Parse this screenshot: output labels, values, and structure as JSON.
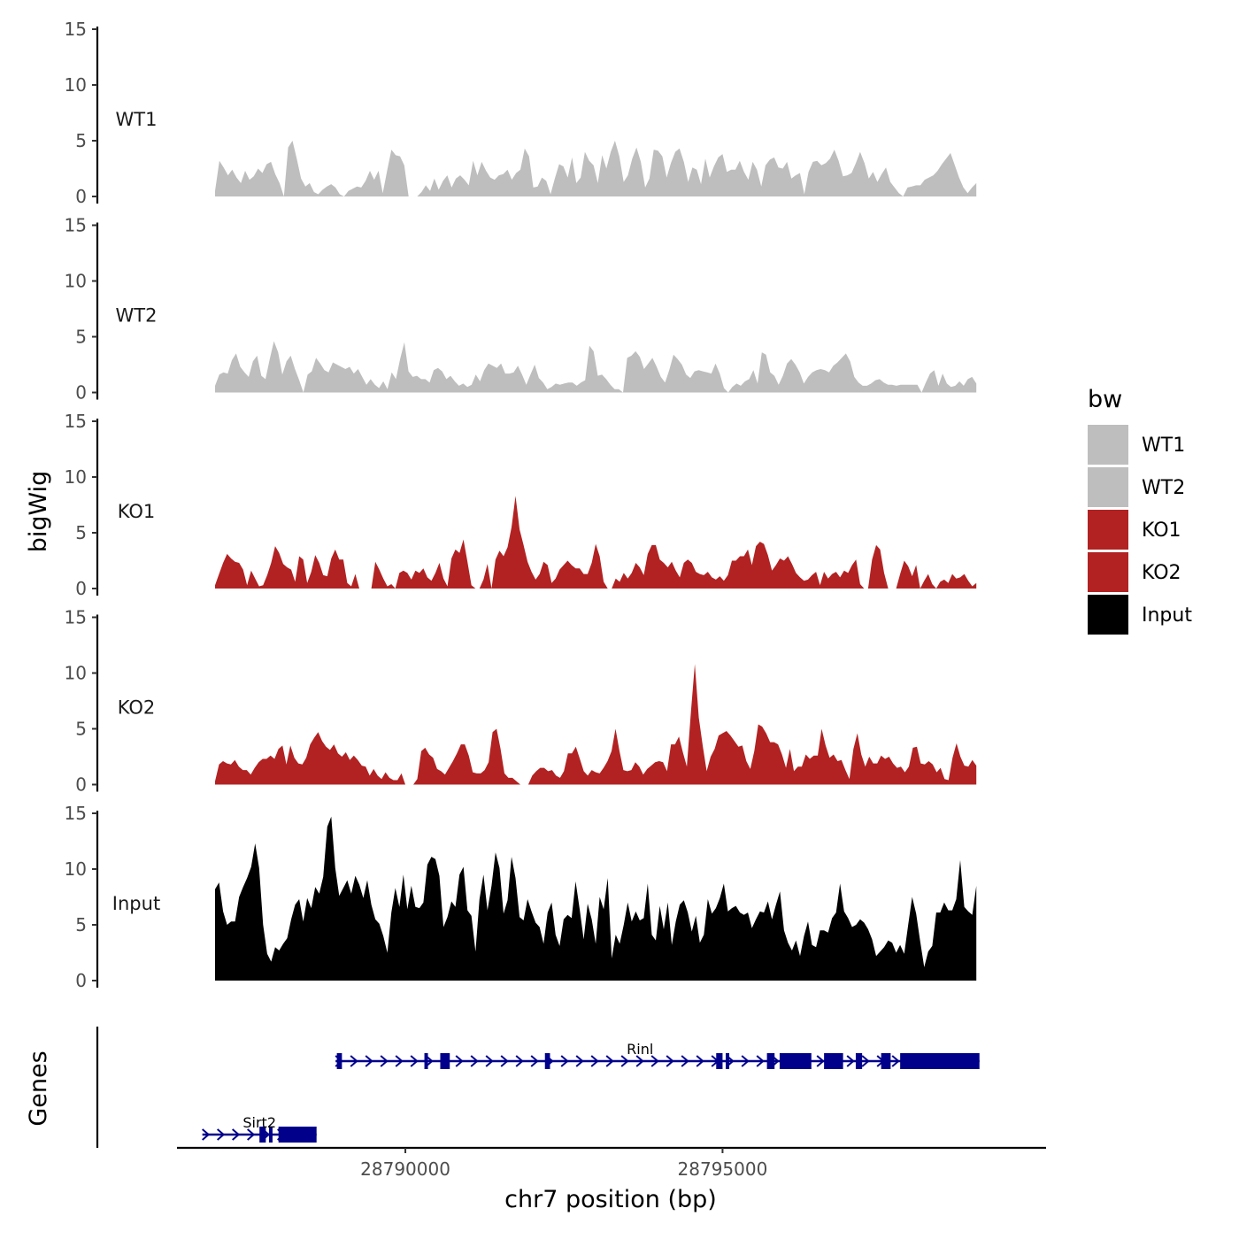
{
  "chart_data": {
    "type": "area",
    "ylabel": "bigWig",
    "xlabel": "chr7 position (bp)",
    "genes_label": "Genes",
    "xlim": [
      28786400,
      28800100
    ],
    "x_ticks": [
      28790000,
      28795000
    ],
    "x_tick_labels": [
      "28790000",
      "28795000"
    ],
    "ylim": [
      0,
      15
    ],
    "y_ticks": [
      0,
      5,
      10,
      15
    ],
    "data_x_range": [
      28787000,
      28799000
    ],
    "legend": {
      "title": "bw",
      "entries": [
        {
          "label": "WT1",
          "color": "#bebebe"
        },
        {
          "label": "WT2",
          "color": "#bebebe"
        },
        {
          "label": "KO1",
          "color": "#b22222"
        },
        {
          "label": "KO2",
          "color": "#b22222"
        },
        {
          "label": "Input",
          "color": "#000000"
        }
      ]
    },
    "tracks": [
      {
        "name": "WT1",
        "color": "#bebebe",
        "values": [
          0.5,
          3.2,
          2.6,
          1.9,
          2.4,
          1.7,
          1.2,
          2.3,
          1.5,
          1.8,
          2.5,
          2.1,
          2.9,
          3.1,
          2.0,
          1.2,
          0,
          4.4,
          5.0,
          3.4,
          1.6,
          0.9,
          1.2,
          0.4,
          0.2,
          0.6,
          0.9,
          1.1,
          0.8,
          0.2,
          0,
          0.5,
          0.7,
          0.9,
          0.8,
          1.4,
          2.3,
          1.5,
          2.3,
          0.3,
          2.3,
          4.2,
          3.7,
          3.6,
          2.8,
          0,
          0,
          0,
          0.4,
          1.0,
          0.5,
          1.6,
          0.6,
          1.4,
          1.9,
          0.8,
          1.6,
          1.9,
          1.5,
          1.0,
          3.2,
          1.9,
          3.1,
          2.3,
          1.7,
          1.5,
          1.9,
          2.0,
          2.4,
          1.5,
          2.1,
          2.4,
          4.3,
          3.6,
          0.8,
          0.9,
          1.7,
          1.4,
          0.2,
          1.6,
          2.9,
          2.7,
          1.7,
          3.5,
          1.2,
          1.7,
          4.0,
          3.2,
          2.8,
          1.2,
          3.7,
          2.5,
          4.0,
          5.0,
          3.6,
          1.3,
          1.9,
          3.4,
          4.4,
          3.1,
          0.8,
          1.6,
          4.2,
          4.1,
          3.6,
          1.7,
          3.0,
          4.0,
          4.3,
          3.1,
          1.3,
          2.6,
          2.4,
          1.1,
          3.4,
          1.7,
          2.7,
          3.5,
          3.8,
          2.2,
          2.4,
          2.4,
          3.2,
          2.2,
          1.5,
          3.1,
          2.4,
          0.9,
          2.8,
          3.3,
          3.5,
          2.6,
          2.5,
          3.1,
          1.6,
          1.9,
          2.1,
          0.2,
          2.2,
          3.1,
          3.2,
          2.8,
          3.0,
          3.4,
          4.2,
          3.2,
          1.8,
          1.9,
          2.1,
          3.0,
          4.0,
          3.0,
          1.6,
          2.2,
          1.3,
          2.0,
          2.6,
          1.3,
          0.8,
          0.3,
          0,
          0.8,
          0.9,
          1.0,
          1.0,
          1.5,
          1.7,
          1.9,
          2.3,
          2.9,
          3.4,
          3.9,
          2.8,
          1.7,
          0.8,
          0.3,
          0.8,
          1.2
        ]
      },
      {
        "name": "WT2",
        "color": "#bebebe",
        "values": [
          0.6,
          1.6,
          1.8,
          1.7,
          2.9,
          3.5,
          2.3,
          1.8,
          1.4,
          2.8,
          3.3,
          1.5,
          1.2,
          3.0,
          4.6,
          3.6,
          1.6,
          2.8,
          3.3,
          2.1,
          1.1,
          0,
          1.6,
          1.9,
          3.1,
          2.6,
          2.0,
          1.8,
          2.7,
          2.5,
          2.3,
          2.1,
          2.3,
          1.7,
          2.1,
          1.4,
          0.7,
          1.2,
          0.7,
          0.4,
          1.0,
          0.3,
          1.8,
          1.2,
          3.0,
          4.5,
          1.9,
          1.4,
          1.5,
          1.2,
          1.2,
          0.9,
          2.0,
          2.2,
          1.9,
          1.2,
          1.5,
          1.0,
          0.6,
          0.8,
          0.5,
          0.7,
          1.6,
          1.0,
          2.0,
          2.6,
          2.4,
          2.2,
          2.6,
          1.7,
          1.7,
          1.8,
          2.4,
          1.6,
          0.7,
          1.6,
          2.5,
          1.3,
          0.9,
          0.3,
          0.5,
          0.8,
          0.7,
          0.8,
          0.9,
          0.9,
          0.6,
          0.9,
          1.1,
          4.2,
          3.7,
          1.5,
          1.6,
          1.2,
          0.7,
          0.3,
          0.3,
          0,
          3.1,
          3.3,
          3.7,
          3.2,
          2.1,
          2.6,
          3.1,
          2.3,
          1.4,
          0.9,
          2.0,
          3.4,
          3.0,
          2.5,
          1.6,
          1.3,
          1.9,
          2.0,
          1.9,
          1.8,
          1.7,
          2.6,
          1.7,
          0.4,
          0,
          0.5,
          0.8,
          0.6,
          1.0,
          1.2,
          2.0,
          0.8,
          3.6,
          3.4,
          1.8,
          1.5,
          0.7,
          1.5,
          2.6,
          3.0,
          2.5,
          1.8,
          0.8,
          1.4,
          1.8,
          2.0,
          2.1,
          2.0,
          1.8,
          2.4,
          2.7,
          3.1,
          3.5,
          2.8,
          1.4,
          0.9,
          0.6,
          0.6,
          0.8,
          1.1,
          1.2,
          0.9,
          0.7,
          0.7,
          0.6,
          0.7,
          0.7,
          0.7,
          0.7,
          0.7,
          0,
          0.9,
          1.7,
          2.0,
          0.6,
          1.7,
          0.8,
          0.5,
          0.6,
          1.0,
          0.6,
          1.2,
          1.4,
          0.8
        ]
      },
      {
        "name": "KO1",
        "color": "#b22222",
        "values": [
          0.3,
          1.3,
          2.3,
          3.1,
          2.7,
          2.4,
          2.3,
          1.7,
          0.3,
          1.6,
          0.9,
          0.2,
          0.3,
          1.2,
          2.3,
          3.8,
          3.2,
          2.2,
          1.9,
          1.7,
          0.6,
          2.9,
          2.6,
          0.5,
          1.5,
          3.0,
          2.3,
          1.2,
          1.1,
          2.7,
          3.5,
          2.6,
          2.6,
          0.5,
          0.2,
          1.3,
          0,
          0,
          0,
          0,
          2.4,
          1.7,
          0.9,
          0.2,
          0.4,
          0,
          1.4,
          1.6,
          1.4,
          0.8,
          1.6,
          1.4,
          1.8,
          1.0,
          0.7,
          1.4,
          2.3,
          0.9,
          0.2,
          2.7,
          3.5,
          3.2,
          4.4,
          2.4,
          0.3,
          0,
          0,
          0.8,
          2.2,
          0,
          2.6,
          3.4,
          2.9,
          3.7,
          5.5,
          8.3,
          5.3,
          3.9,
          2.4,
          1.5,
          0.8,
          1.3,
          2.4,
          2.1,
          0.5,
          0.9,
          1.7,
          2.1,
          2.5,
          2.1,
          1.8,
          1.8,
          1.3,
          1.3,
          2.3,
          4.0,
          2.9,
          0.6,
          0,
          0,
          0.9,
          0.6,
          1.4,
          0.9,
          1.4,
          2.3,
          1.9,
          1.2,
          3.1,
          3.9,
          3.9,
          2.6,
          2.3,
          1.9,
          2.4,
          1.6,
          1.0,
          2.3,
          2.6,
          2.3,
          1.5,
          1.3,
          1.2,
          1.5,
          1.0,
          0.8,
          1.1,
          0.7,
          1.2,
          2.5,
          2.5,
          2.9,
          2.9,
          3.5,
          2.1,
          3.8,
          4.2,
          4.0,
          3.0,
          1.6,
          2.1,
          2.7,
          2.5,
          2.9,
          2.2,
          1.4,
          1.0,
          0.7,
          0.8,
          1.2,
          1.5,
          0.3,
          1.5,
          0.9,
          1.3,
          1.5,
          1.0,
          1.6,
          1.4,
          2.1,
          2.6,
          0.4,
          0,
          0,
          2.6,
          3.9,
          3.5,
          1.4,
          0,
          0,
          0,
          1.3,
          2.5,
          2.0,
          1.1,
          2.1,
          0,
          0.7,
          1.3,
          0.4,
          0,
          0.6,
          0.8,
          0.5,
          1.3,
          0.9,
          1.0,
          1.3,
          0.7,
          0.2,
          0.5
        ]
      },
      {
        "name": "KO2",
        "color": "#b22222",
        "values": [
          0.3,
          1.8,
          2.1,
          1.9,
          1.8,
          2.2,
          1.6,
          1.3,
          1.3,
          0.9,
          1.5,
          2.0,
          2.3,
          2.3,
          2.6,
          2.3,
          3.2,
          3.5,
          1.8,
          3.5,
          2.4,
          1.9,
          1.8,
          2.4,
          3.6,
          4.2,
          4.7,
          3.9,
          3.4,
          3.1,
          3.6,
          2.8,
          2.5,
          2.9,
          2.2,
          2.6,
          2.2,
          1.7,
          1.6,
          0.8,
          1.4,
          0.8,
          0.5,
          1.1,
          0.6,
          0.4,
          0.4,
          1.0,
          0,
          0,
          0,
          0.5,
          3.0,
          3.3,
          2.7,
          2.4,
          1.4,
          1.2,
          0.9,
          1.5,
          2.1,
          2.8,
          3.6,
          3.6,
          2.6,
          1.1,
          1.0,
          1.0,
          1.3,
          2.0,
          4.7,
          5.0,
          3.2,
          1.0,
          0.6,
          0.6,
          0.3,
          0,
          0,
          0,
          0.8,
          1.2,
          1.5,
          1.5,
          1.2,
          1.3,
          0.8,
          0.6,
          1.2,
          2.8,
          2.8,
          3.4,
          2.3,
          1.2,
          0.8,
          1.3,
          1.1,
          1.0,
          1.5,
          2.1,
          3.0,
          5.0,
          3.0,
          1.3,
          1.2,
          1.3,
          2.0,
          1.6,
          0.9,
          1.4,
          1.7,
          2.0,
          2.1,
          2.0,
          1.2,
          3.6,
          3.6,
          4.3,
          2.9,
          1.6,
          6.4,
          10.8,
          6.0,
          3.5,
          1.2,
          2.5,
          3.2,
          4.4,
          4.6,
          4.8,
          4.4,
          3.9,
          3.4,
          3.5,
          2.1,
          1.4,
          3.0,
          5.4,
          5.2,
          4.6,
          3.8,
          3.8,
          3.6,
          2.7,
          1.5,
          3.2,
          1.2,
          1.6,
          1.6,
          2.7,
          2.3,
          2.6,
          2.6,
          5.0,
          3.5,
          2.4,
          2.7,
          2.1,
          2.2,
          1.3,
          0.5,
          3.2,
          4.6,
          2.7,
          1.6,
          2.5,
          1.9,
          1.9,
          2.6,
          2.3,
          2.5,
          1.9,
          1.5,
          1.6,
          1.1,
          1.6,
          3.3,
          3.4,
          1.9,
          1.8,
          2.1,
          1.8,
          1.1,
          1.5,
          0.5,
          0.4,
          2.4,
          3.7,
          2.5,
          1.7,
          1.6,
          2.2,
          1.7
        ]
      },
      {
        "name": "Input",
        "color": "#000000",
        "values": [
          8.2,
          8.8,
          6.2,
          5.0,
          5.3,
          5.3,
          7.5,
          8.4,
          9.2,
          10.2,
          12.3,
          10.1,
          5.0,
          2.4,
          1.7,
          3.0,
          2.7,
          3.3,
          3.8,
          5.5,
          6.8,
          7.3,
          5.3,
          7.4,
          6.5,
          8.4,
          7.8,
          9.3,
          13.8,
          14.7,
          10.1,
          7.6,
          8.3,
          9.0,
          7.8,
          9.4,
          8.6,
          7.4,
          9.0,
          6.8,
          5.5,
          5.1,
          4.0,
          2.5,
          6.1,
          8.3,
          6.6,
          9.5,
          6.4,
          8.5,
          6.6,
          6.5,
          7.0,
          10.4,
          11.1,
          10.9,
          9.4,
          4.8,
          5.7,
          7.1,
          6.6,
          9.5,
          10.2,
          6.3,
          5.8,
          2.6,
          7.3,
          9.5,
          6.3,
          8.5,
          11.5,
          10.1,
          6.0,
          7.2,
          11.1,
          9.2,
          5.7,
          5.4,
          7.3,
          6.2,
          5.2,
          4.8,
          3.3,
          6.1,
          7.0,
          4.1,
          3.1,
          5.5,
          5.9,
          5.6,
          8.9,
          6.4,
          3.7,
          6.9,
          5.5,
          3.3,
          7.5,
          6.4,
          9.2,
          2.0,
          4.1,
          3.3,
          5.0,
          7.0,
          5.3,
          6.2,
          5.4,
          5.6,
          8.7,
          4.1,
          3.6,
          6.7,
          4.6,
          7.0,
          3.2,
          5.3,
          6.8,
          7.2,
          6.1,
          4.4,
          5.8,
          3.4,
          4.1,
          7.3,
          6.0,
          6.5,
          7.4,
          8.7,
          6.2,
          6.5,
          6.7,
          6.1,
          5.9,
          6.1,
          4.7,
          5.5,
          6.2,
          6.1,
          7.1,
          5.5,
          6.8,
          8.0,
          4.5,
          3.4,
          2.7,
          3.6,
          2.2,
          4.0,
          5.3,
          3.2,
          3.0,
          4.5,
          4.5,
          4.3,
          5.6,
          6.1,
          8.7,
          6.2,
          5.6,
          4.8,
          5.0,
          5.5,
          5.2,
          4.6,
          3.7,
          2.2,
          2.6,
          3.0,
          3.6,
          3.4,
          2.5,
          3.2,
          2.4,
          5.0,
          7.5,
          6.0,
          3.5,
          1.2,
          2.6,
          3.1,
          6.1,
          6.1,
          7.0,
          6.3,
          6.3,
          7.3,
          10.8,
          6.6,
          6.2,
          5.9,
          8.5
        ]
      }
    ],
    "genes": [
      {
        "name": "Sirt2",
        "strand": "+",
        "color": "#00008b",
        "start": 28786800,
        "end": 28788600,
        "exons": [
          [
            28787700,
            28787800
          ],
          [
            28787850,
            28787900
          ],
          [
            28788000,
            28788600
          ]
        ]
      },
      {
        "name": "Rinl",
        "strand": "+",
        "color": "#00008b",
        "start": 28788900,
        "end": 28799050,
        "exons": [
          [
            28788920,
            28789000
          ],
          [
            28790300,
            28790350
          ],
          [
            28790550,
            28790700
          ],
          [
            28792200,
            28792280
          ],
          [
            28794900,
            28795000
          ],
          [
            28795050,
            28795100
          ],
          [
            28795700,
            28795820
          ],
          [
            28795900,
            28796400
          ],
          [
            28796600,
            28796900
          ],
          [
            28797100,
            28797200
          ],
          [
            28797500,
            28797650
          ],
          [
            28797800,
            28799050
          ]
        ]
      }
    ]
  }
}
